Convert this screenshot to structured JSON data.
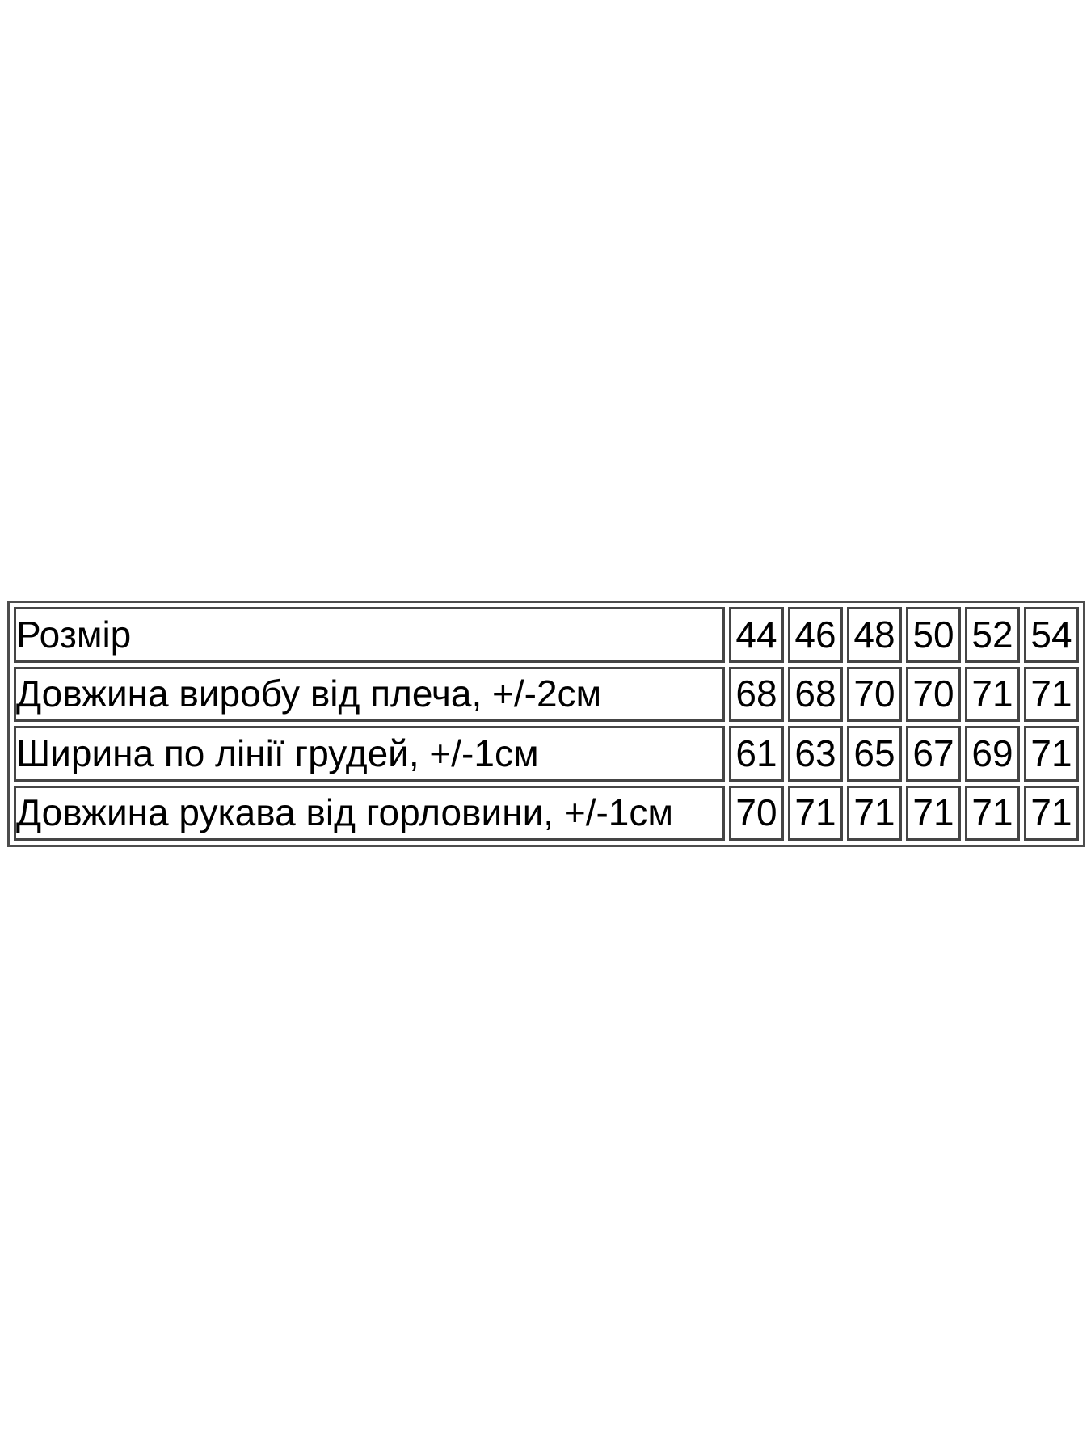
{
  "page": {
    "background_color": "#ffffff"
  },
  "size_table": {
    "border_color": "#4d4d4d",
    "text_color": "#000000",
    "rows": [
      {
        "label": "Розмір",
        "values": [
          "44",
          "46",
          "48",
          "50",
          "52",
          "54"
        ]
      },
      {
        "label": "Довжина виробу від плеча, +/-2см",
        "values": [
          "68",
          "68",
          "70",
          "70",
          "71",
          "71"
        ]
      },
      {
        "label": "Ширина по лінії грудей, +/-1см",
        "values": [
          "61",
          "63",
          "65",
          "67",
          "69",
          "71"
        ]
      },
      {
        "label": "Довжина рукава від горловини, +/-1см",
        "values": [
          "70",
          "71",
          "71",
          "71",
          "71",
          "71"
        ]
      }
    ]
  }
}
